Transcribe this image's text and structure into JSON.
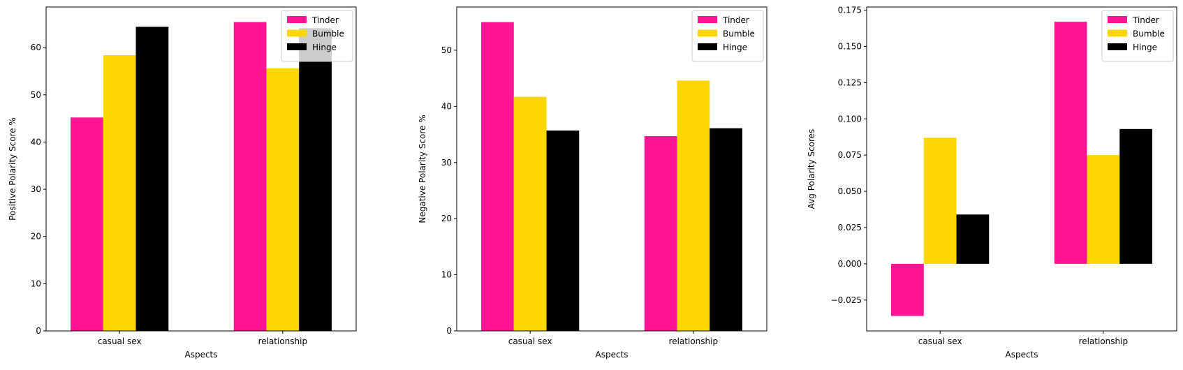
{
  "colors": {
    "Tinder": "#ff1493",
    "Bumble": "#ffd700",
    "Hinge": "#000000",
    "axis": "#000000",
    "background": "#ffffff"
  },
  "chart_data": [
    {
      "type": "bar",
      "xlabel": "Aspects",
      "ylabel": "Positive Polarity Score %",
      "categories": [
        "casual sex",
        "relationship"
      ],
      "series": [
        {
          "name": "Tinder",
          "values": [
            45.2,
            65.4
          ]
        },
        {
          "name": "Bumble",
          "values": [
            58.4,
            55.6
          ]
        },
        {
          "name": "Hinge",
          "values": [
            64.4,
            64.1
          ]
        }
      ],
      "ylim": [
        0,
        68.6
      ],
      "yticks": [
        0,
        10,
        20,
        30,
        40,
        50,
        60
      ],
      "ytick_labels": [
        "0",
        "10",
        "20",
        "30",
        "40",
        "50",
        "60"
      ],
      "legend": "top-right",
      "grid": false
    },
    {
      "type": "bar",
      "xlabel": "Aspects",
      "ylabel": "Negative Polarity Score %",
      "categories": [
        "casual sex",
        "relationship"
      ],
      "series": [
        {
          "name": "Tinder",
          "values": [
            55.0,
            34.7
          ]
        },
        {
          "name": "Bumble",
          "values": [
            41.7,
            44.6
          ]
        },
        {
          "name": "Hinge",
          "values": [
            35.7,
            36.1
          ]
        }
      ],
      "ylim": [
        0,
        57.7
      ],
      "yticks": [
        0,
        10,
        20,
        30,
        40,
        50
      ],
      "ytick_labels": [
        "0",
        "10",
        "20",
        "30",
        "40",
        "50"
      ],
      "legend": "top-right",
      "grid": false
    },
    {
      "type": "bar",
      "xlabel": "Aspects",
      "ylabel": "Avg Polarity Scores",
      "categories": [
        "casual sex",
        "relationship"
      ],
      "series": [
        {
          "name": "Tinder",
          "values": [
            -0.036,
            0.167
          ]
        },
        {
          "name": "Bumble",
          "values": [
            0.087,
            0.075
          ]
        },
        {
          "name": "Hinge",
          "values": [
            0.034,
            0.093
          ]
        }
      ],
      "ylim": [
        -0.0463,
        0.1772
      ],
      "yticks": [
        -0.025,
        0.0,
        0.025,
        0.05,
        0.075,
        0.1,
        0.125,
        0.15,
        0.175
      ],
      "ytick_labels": [
        "−0.025",
        "0.000",
        "0.025",
        "0.050",
        "0.075",
        "0.100",
        "0.125",
        "0.150",
        "0.175"
      ],
      "legend": "top-right",
      "grid": false
    }
  ]
}
